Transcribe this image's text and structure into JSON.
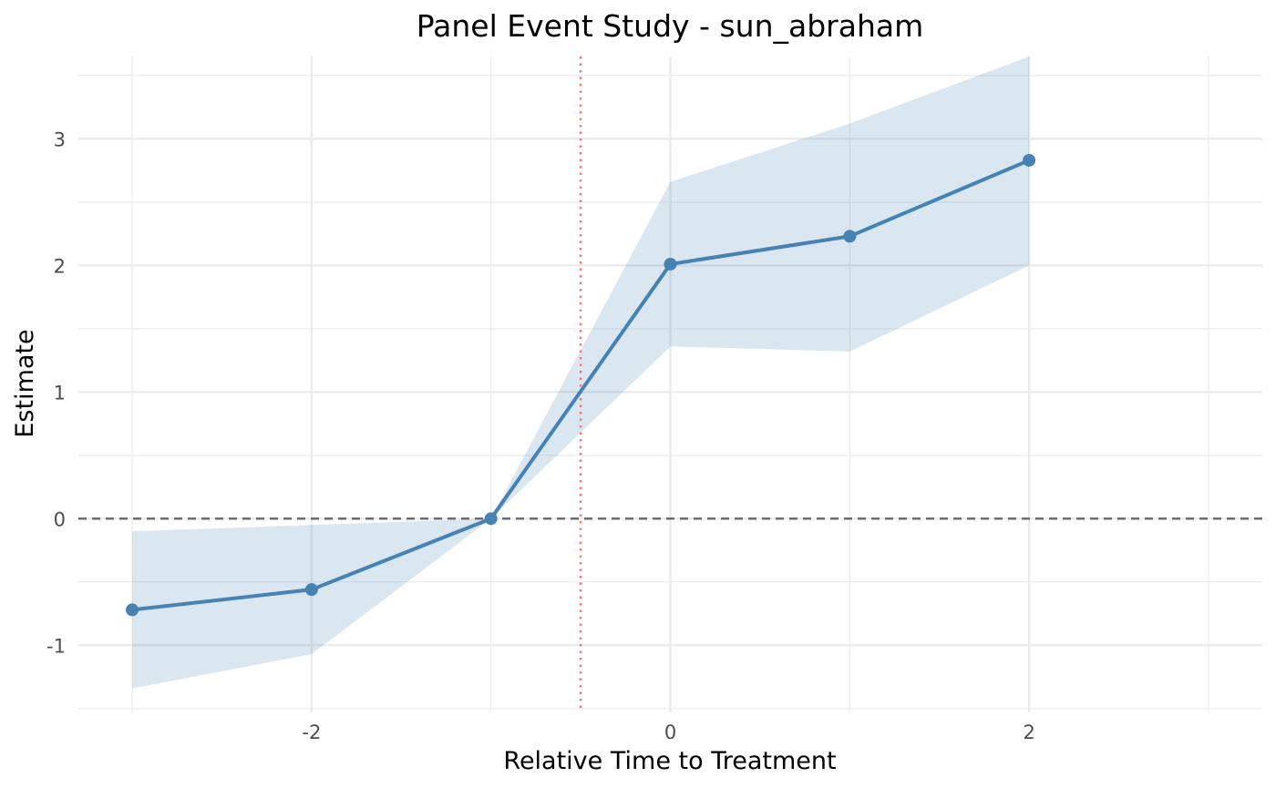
{
  "chart_data": {
    "type": "line",
    "title": "Panel Event Study - sun_abraham",
    "xlabel": "Relative Time to Treatment",
    "ylabel": "Estimate",
    "xlim": [
      -3.3,
      3.3
    ],
    "ylim": [
      -1.53,
      3.65
    ],
    "x_ticks": [
      -2,
      0,
      2
    ],
    "x_tick_labels": [
      "-2",
      "0",
      "2"
    ],
    "y_ticks": [
      -1,
      0,
      1,
      2,
      3
    ],
    "y_tick_labels": [
      "-1",
      "0",
      "1",
      "2",
      "3"
    ],
    "x_minor_grid": [
      -3,
      -1,
      1,
      3
    ],
    "y_minor_grid": [
      -1.5,
      -0.5,
      0.5,
      1.5,
      2.5,
      3.5
    ],
    "grid": true,
    "series": [
      {
        "x": [
          -3,
          -2,
          -1,
          0,
          1,
          2
        ],
        "values": [
          -0.72,
          -0.56,
          0.0,
          2.01,
          2.23,
          2.83
        ],
        "ci_lower": [
          -1.34,
          -1.07,
          0.0,
          1.36,
          1.32,
          2.0
        ],
        "ci_upper": [
          -0.1,
          -0.05,
          0.0,
          2.66,
          3.12,
          3.65
        ]
      }
    ],
    "reference_lines": {
      "horizontal_y": 0,
      "vertical_x": -0.5
    },
    "colors": {
      "line": "#4682b4",
      "ribbon": "#4682b4",
      "horizontal_reference": "#666666",
      "vertical_reference": "#f8766d",
      "grid": "#ebebeb"
    }
  }
}
